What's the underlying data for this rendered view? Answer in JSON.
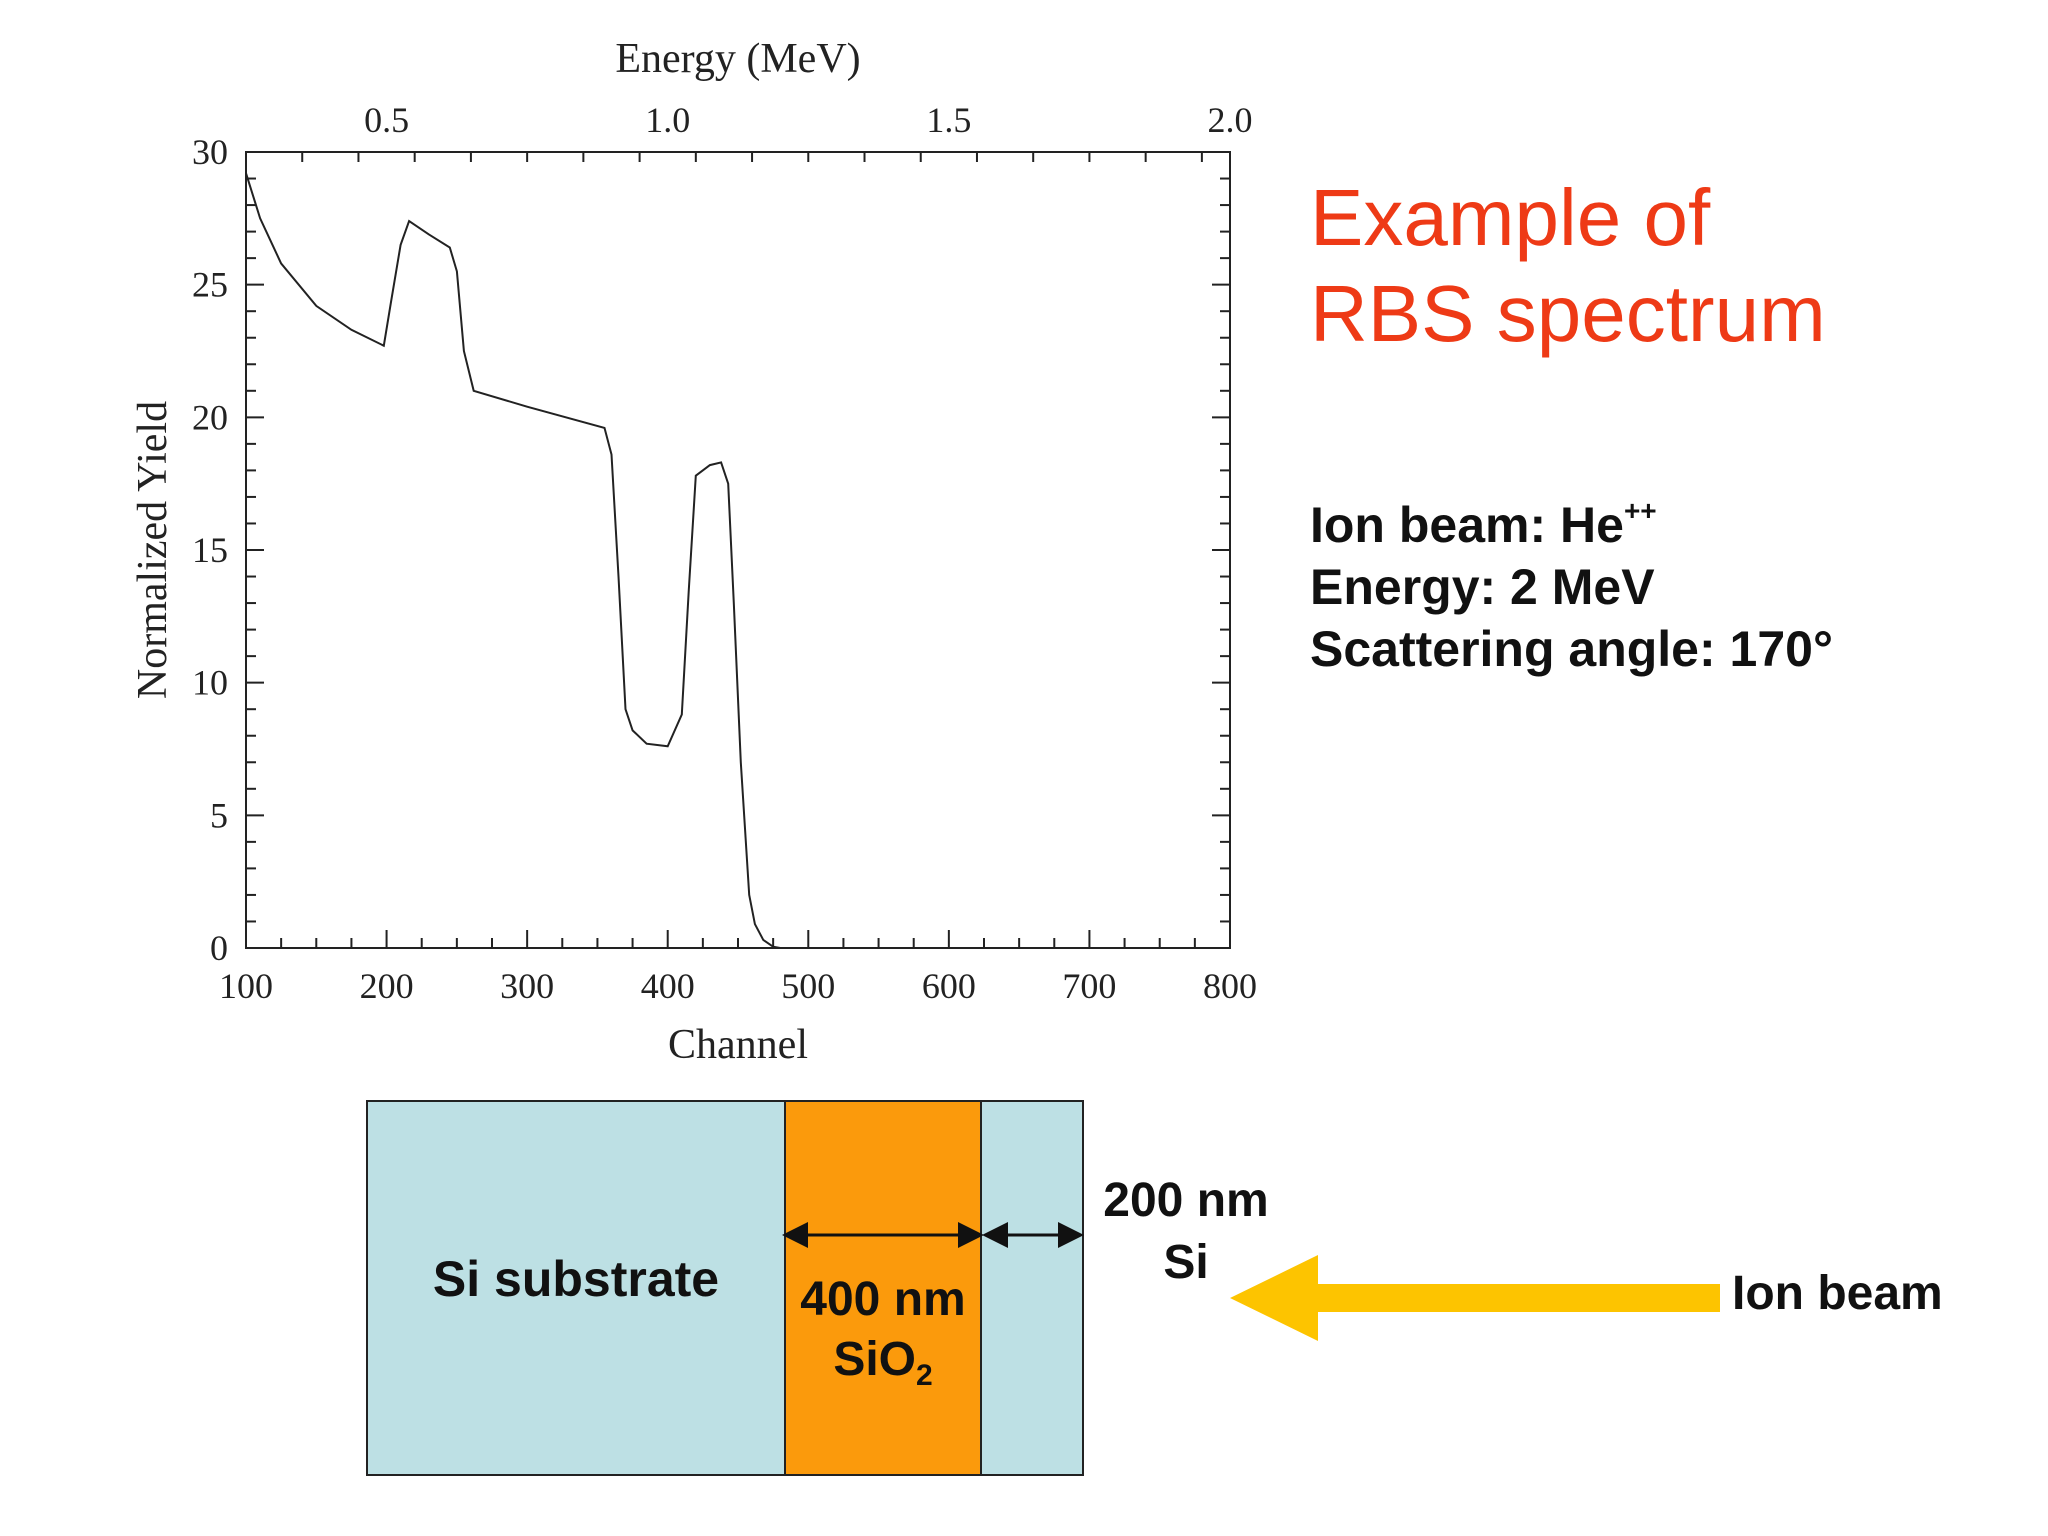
{
  "chart_data": {
    "type": "line",
    "title": "",
    "xlabel": "Channel",
    "ylabel": "Normalized Yield",
    "x2label": "Energy (MeV)",
    "xlim": [
      100,
      800
    ],
    "ylim": [
      0,
      30
    ],
    "xticks": [
      100,
      200,
      300,
      400,
      500,
      600,
      700,
      800
    ],
    "yticks": [
      0,
      5,
      10,
      15,
      20,
      25,
      30
    ],
    "x2ticks": [
      {
        "label": "0.5",
        "channel": 200
      },
      {
        "label": "1.0",
        "channel": 400
      },
      {
        "label": "1.5",
        "channel": 600
      },
      {
        "label": "2.0",
        "channel": 800
      }
    ],
    "grid": false,
    "series": [
      {
        "x": [
          100,
          110,
          125,
          150,
          175,
          198,
          203,
          210,
          216,
          230,
          245,
          250,
          255,
          262,
          300,
          355,
          360,
          365,
          370,
          375,
          385,
          400,
          410,
          415,
          420,
          430,
          438,
          443,
          447,
          452,
          458,
          462,
          468,
          475,
          480
        ],
        "y": [
          29.2,
          27.5,
          25.8,
          24.2,
          23.3,
          22.7,
          24.3,
          26.5,
          27.4,
          26.9,
          26.4,
          25.5,
          22.5,
          21.0,
          20.4,
          19.6,
          18.6,
          14.0,
          9.0,
          8.2,
          7.7,
          7.6,
          8.8,
          13.5,
          17.8,
          18.2,
          18.3,
          17.5,
          13.0,
          7.0,
          2.0,
          0.9,
          0.3,
          0.05,
          0
        ]
      }
    ]
  },
  "slide": {
    "title_line1": "Example of",
    "title_line2": "RBS spectrum",
    "info": {
      "ion_beam_label": "Ion beam: He",
      "ion_beam_sup": "++",
      "energy": "Energy: 2 MeV",
      "angle": "Scattering angle: 170°"
    }
  },
  "diagram": {
    "substrate_label": "Si substrate",
    "sio2_line1": "400 nm",
    "sio2_line2": "SiO",
    "sio2_sub": "2",
    "si_layer_line1": "200 nm",
    "si_layer_line2": "Si",
    "beam_label": "Ion beam",
    "colors": {
      "substrate": "#bde0e4",
      "sio2": "#fb9a0c",
      "arrow": "#fdc400",
      "title": "#ee3a16"
    }
  }
}
